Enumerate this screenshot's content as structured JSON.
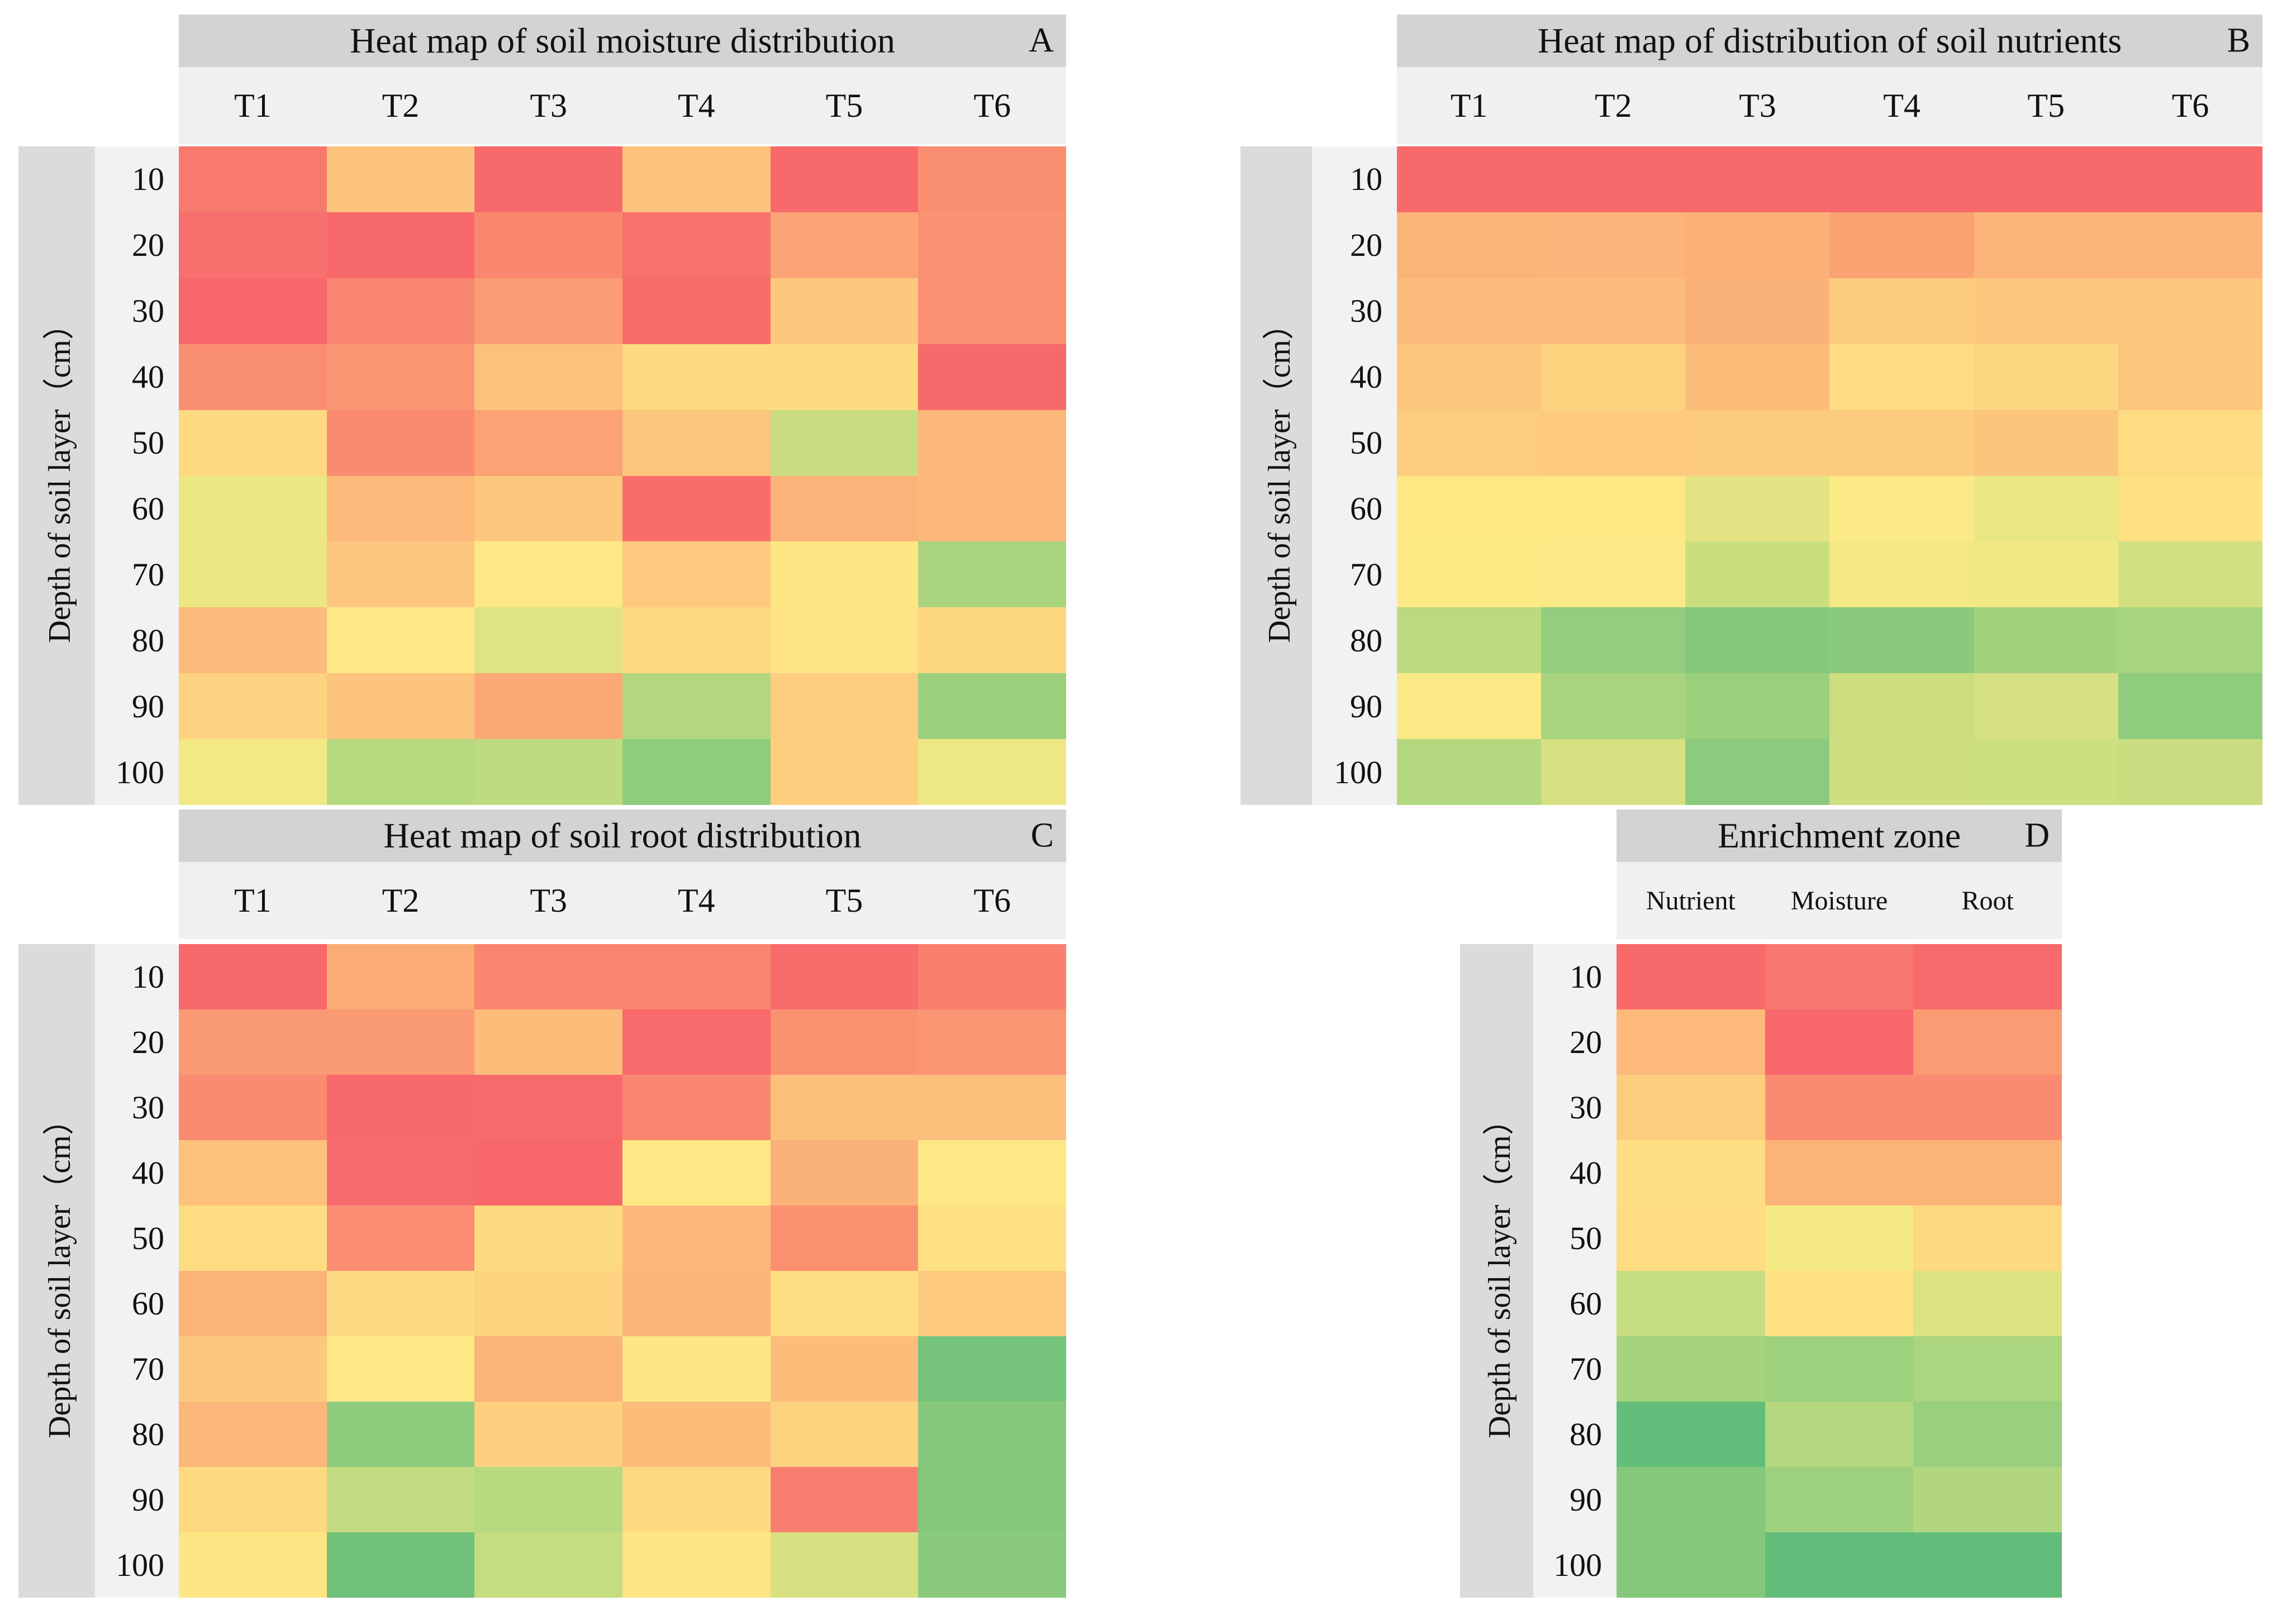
{
  "colormap": {
    "type": "red-yellow-green",
    "high_color": "#F8696B",
    "mid_color": "#FFEB84",
    "low_color": "#63BE7B",
    "value_scale": "values_norm: 1 = highest (red), 0.5 = middle (yellow), 0 = lowest (green); estimated from cell colors (no numeric labels shown)"
  },
  "chart_data": [
    {
      "type": "heatmap",
      "panel_letter": "A",
      "title": "Heat map of soil moisture distribution",
      "ylabel": "Depth of soil layer（cm）",
      "columns": [
        "T1",
        "T2",
        "T3",
        "T4",
        "T5",
        "T6"
      ],
      "rows": [
        "10",
        "20",
        "30",
        "40",
        "50",
        "60",
        "70",
        "80",
        "90",
        "100"
      ],
      "colors": [
        [
          "#F87A6E",
          "#FDC47D",
          "#F8696B",
          "#FDC37D",
          "#F8696B",
          "#FA8E71"
        ],
        [
          "#F8706D",
          "#F8696B",
          "#F9886F",
          "#F8716D",
          "#FBA476",
          "#FA9172"
        ],
        [
          "#F8676B",
          "#F98672",
          "#FB9D74",
          "#F86C6C",
          "#FDC87E",
          "#FA8F72"
        ],
        [
          "#FA8E71",
          "#FA9673",
          "#FCC17C",
          "#FEDA81",
          "#FEDA81",
          "#F8696B"
        ],
        [
          "#FED980",
          "#FA8B70",
          "#FBA375",
          "#FDC67D",
          "#C9DC80",
          "#FCB77A"
        ],
        [
          "#EDE783",
          "#FCBA7A",
          "#FDC77E",
          "#F86D6C",
          "#FCB379",
          "#FCB77A"
        ],
        [
          "#EDE783",
          "#FDC67E",
          "#FEE886",
          "#FDC97F",
          "#FEE685",
          "#ABD47E"
        ],
        [
          "#FCBA7B",
          "#FEE787",
          "#E0E384",
          "#FDD981",
          "#FEE484",
          "#FDD681"
        ],
        [
          "#FDD280",
          "#FCC47D",
          "#FBAA77",
          "#B2D77F",
          "#FDCD7F",
          "#9DD07D"
        ],
        [
          "#F2E985",
          "#B7D980",
          "#BFDB80",
          "#8FCC7D",
          "#FDCE7E",
          "#EEE884"
        ]
      ],
      "values_norm": [
        [
          0.93,
          0.65,
          1.0,
          0.65,
          1.0,
          0.86
        ],
        [
          0.97,
          1.0,
          0.88,
          0.97,
          0.77,
          0.85
        ],
        [
          1.0,
          0.89,
          0.8,
          0.99,
          0.63,
          0.85
        ],
        [
          0.86,
          0.83,
          0.66,
          0.57,
          0.57,
          1.0
        ],
        [
          0.57,
          0.87,
          0.78,
          0.64,
          0.33,
          0.7
        ],
        [
          0.44,
          0.69,
          0.64,
          0.98,
          0.72,
          0.7
        ],
        [
          0.44,
          0.64,
          0.51,
          0.63,
          0.52,
          0.23
        ],
        [
          0.69,
          0.52,
          0.4,
          0.57,
          0.53,
          0.58
        ],
        [
          0.6,
          0.65,
          0.75,
          0.25,
          0.62,
          0.19
        ],
        [
          0.46,
          0.27,
          0.29,
          0.14,
          0.61,
          0.45
        ]
      ]
    },
    {
      "type": "heatmap",
      "panel_letter": "B",
      "title": "Heat map of distribution of soil nutrients",
      "ylabel": "Depth of soil layer（cm）",
      "columns": [
        "T1",
        "T2",
        "T3",
        "T4",
        "T5",
        "T6"
      ],
      "rows": [
        "10",
        "20",
        "30",
        "40",
        "50",
        "60",
        "70",
        "80",
        "90",
        "100"
      ],
      "colors": [
        [
          "#F8696B",
          "#F8696B",
          "#F8696B",
          "#F8696B",
          "#F8696B",
          "#F8696B"
        ],
        [
          "#FCB377",
          "#FCB47A",
          "#FCB076",
          "#FBA273",
          "#FCB479",
          "#FCB378"
        ],
        [
          "#FCBC7B",
          "#FCBD7C",
          "#FBB278",
          "#FDCB7E",
          "#FDC87E",
          "#FDC67D"
        ],
        [
          "#FDC67D",
          "#FDD27F",
          "#FCBD7B",
          "#FEDD82",
          "#FDD681",
          "#FCC67D"
        ],
        [
          "#FDCD7E",
          "#FDCA7E",
          "#FDCB7E",
          "#FDCB7E",
          "#FCC57C",
          "#FEDC81"
        ],
        [
          "#FEE883",
          "#FEE884",
          "#E3E383",
          "#FBEA85",
          "#E9E684",
          "#FEE181"
        ],
        [
          "#FDEA85",
          "#FAE985",
          "#CADE80",
          "#F4E883",
          "#F1E884",
          "#D3E081"
        ],
        [
          "#BCD980",
          "#94CD7E",
          "#85C87C",
          "#8ACA7D",
          "#A2D27E",
          "#A7D47E"
        ],
        [
          "#FAE985",
          "#A8D47E",
          "#9BD07D",
          "#CDDE81",
          "#D4E081",
          "#90CC7D"
        ],
        [
          "#B4D77F",
          "#D6E081",
          "#8CCA7D",
          "#CEDE81",
          "#CCE07F",
          "#C9DD80"
        ]
      ],
      "values_norm": [
        [
          1.0,
          1.0,
          1.0,
          1.0,
          1.0,
          1.0
        ],
        [
          0.72,
          0.71,
          0.73,
          0.78,
          0.71,
          0.72
        ],
        [
          0.68,
          0.68,
          0.72,
          0.62,
          0.63,
          0.64
        ],
        [
          0.64,
          0.6,
          0.68,
          0.55,
          0.58,
          0.64
        ],
        [
          0.62,
          0.63,
          0.62,
          0.62,
          0.65,
          0.56
        ],
        [
          0.51,
          0.51,
          0.41,
          0.49,
          0.43,
          0.54
        ],
        [
          0.5,
          0.48,
          0.33,
          0.46,
          0.46,
          0.36
        ],
        [
          0.29,
          0.16,
          0.11,
          0.13,
          0.2,
          0.22
        ],
        [
          0.48,
          0.22,
          0.18,
          0.34,
          0.36,
          0.14
        ],
        [
          0.26,
          0.37,
          0.13,
          0.34,
          0.34,
          0.33
        ]
      ]
    },
    {
      "type": "heatmap",
      "panel_letter": "C",
      "title": "Heat map of soil root distribution",
      "ylabel": "Depth of soil layer（cm）",
      "columns": [
        "T1",
        "T2",
        "T3",
        "T4",
        "T5",
        "T6"
      ],
      "rows": [
        "10",
        "20",
        "30",
        "40",
        "50",
        "60",
        "70",
        "80",
        "90",
        "100"
      ],
      "colors": [
        [
          "#F8696B",
          "#FBAB76",
          "#F9846F",
          "#F9856F",
          "#F86D6C",
          "#F9806E"
        ],
        [
          "#FA9A73",
          "#FA9A73",
          "#FCBD7B",
          "#F86A6C",
          "#FA9271",
          "#FA9673"
        ],
        [
          "#F98B70",
          "#F8696B",
          "#F86B6C",
          "#F98770",
          "#FCC07C",
          "#FCBF7C"
        ],
        [
          "#FCC27C",
          "#F86B6C",
          "#F8686B",
          "#FEE886",
          "#FBB278",
          "#FEE885"
        ],
        [
          "#FEDD82",
          "#FA8D71",
          "#FEDB81",
          "#FCB77A",
          "#FA9070",
          "#FEE183"
        ],
        [
          "#FBB377",
          "#FDD981",
          "#FDD37F",
          "#FCB579",
          "#FEDE82",
          "#FDCA7E"
        ],
        [
          "#FDC87D",
          "#FEE785",
          "#FBB478",
          "#FEE684",
          "#FCBD7B",
          "#76C37B"
        ],
        [
          "#FCB679",
          "#8FCB7D",
          "#FDD07F",
          "#FCBC7A",
          "#FDD37F",
          "#85C87C"
        ],
        [
          "#FDD981",
          "#C4DC81",
          "#B9D980",
          "#FEDB81",
          "#F87F70",
          "#85C87C"
        ],
        [
          "#FEE684",
          "#72C17B",
          "#C6DC80",
          "#FEE584",
          "#D8E181",
          "#8ACA7D"
        ]
      ],
      "values_norm": [
        [
          1.0,
          0.75,
          0.9,
          0.89,
          0.98,
          0.91
        ],
        [
          0.81,
          0.81,
          0.68,
          1.0,
          0.84,
          0.83
        ],
        [
          0.87,
          1.0,
          0.99,
          0.88,
          0.67,
          0.67
        ],
        [
          0.66,
          0.99,
          1.0,
          0.51,
          0.72,
          0.51
        ],
        [
          0.55,
          0.86,
          0.56,
          0.7,
          0.85,
          0.54
        ],
        [
          0.72,
          0.57,
          0.59,
          0.71,
          0.55,
          0.63
        ],
        [
          0.63,
          0.52,
          0.71,
          0.52,
          0.68,
          0.06
        ],
        [
          0.7,
          0.14,
          0.6,
          0.68,
          0.59,
          0.11
        ],
        [
          0.57,
          0.31,
          0.28,
          0.56,
          0.92,
          0.11
        ],
        [
          0.52,
          0.05,
          0.32,
          0.52,
          0.38,
          0.12
        ]
      ]
    },
    {
      "type": "heatmap",
      "panel_letter": "D",
      "title": "Enrichment zone",
      "ylabel": "Depth of soil layer（cm）",
      "columns": [
        "Nutrient",
        "Moisture",
        "Root"
      ],
      "rows": [
        "10",
        "20",
        "30",
        "40",
        "50",
        "60",
        "70",
        "80",
        "90",
        "100"
      ],
      "colors": [
        [
          "#F8696B",
          "#F87870",
          "#F86B6C"
        ],
        [
          "#FCB97A",
          "#F8686C",
          "#FB9B73"
        ],
        [
          "#FDCD7E",
          "#FA8B70",
          "#FA8B70"
        ],
        [
          "#FEDE82",
          "#FCB378",
          "#FCB378"
        ],
        [
          "#FEDC81",
          "#F5E983",
          "#FDD980"
        ],
        [
          "#C6DC81",
          "#FEE182",
          "#DDE182"
        ],
        [
          "#A5D37E",
          "#9ED17E",
          "#ABD57F"
        ],
        [
          "#63BE7B",
          "#B4D77F",
          "#99CF7D"
        ],
        [
          "#85C87C",
          "#9ED17E",
          "#B2D67F"
        ],
        [
          "#85C87C",
          "#62BD7A",
          "#62BD7A"
        ]
      ],
      "values_norm": [
        [
          1.0,
          0.94,
          0.99
        ],
        [
          0.69,
          1.0,
          0.81
        ],
        [
          0.62,
          0.87,
          0.87
        ],
        [
          0.55,
          0.72,
          0.72
        ],
        [
          0.56,
          0.47,
          0.57
        ],
        [
          0.32,
          0.54,
          0.39
        ],
        [
          0.21,
          0.19,
          0.23
        ],
        [
          0.0,
          0.26,
          0.17
        ],
        [
          0.11,
          0.19,
          0.25
        ],
        [
          0.11,
          0.0,
          0.0
        ]
      ]
    }
  ]
}
